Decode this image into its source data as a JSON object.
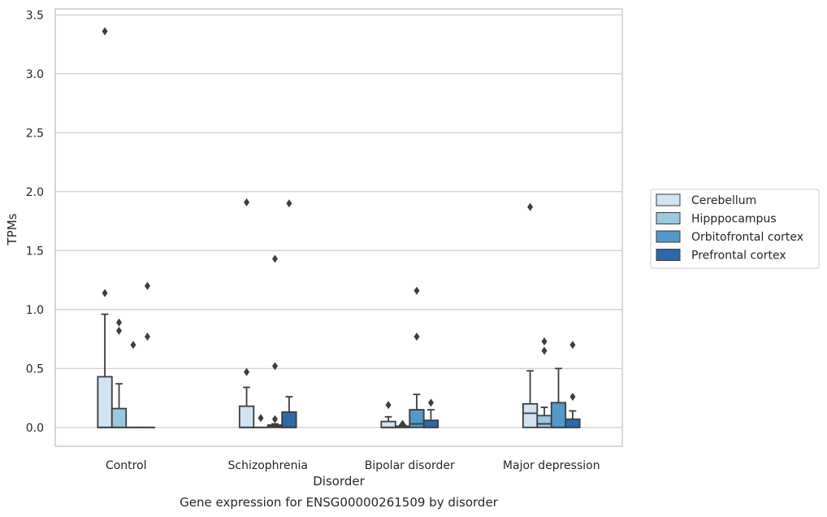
{
  "chart_data": {
    "type": "box",
    "title": "Gene expression for ENSG00000261509 by disorder",
    "xlabel": "Disorder",
    "ylabel": "TPMs",
    "categories": [
      "Control",
      "Schizophrenia",
      "Bipolar disorder",
      "Major depression"
    ],
    "ylim": [
      -0.16,
      3.55
    ],
    "yticks": [
      0.0,
      0.5,
      1.0,
      1.5,
      2.0,
      2.5,
      3.0,
      3.5
    ],
    "ytick_labels": [
      "0.0",
      "0.5",
      "1.0",
      "1.5",
      "2.0",
      "2.5",
      "3.0",
      "3.5"
    ],
    "grid": "horizontal",
    "legend_position": "right",
    "series": [
      {
        "name": "Cerebellum",
        "color": "#d2e3f3",
        "boxes": [
          {
            "q1": 0.0,
            "median": 0.0,
            "q3": 0.43,
            "whisker_low": 0.0,
            "whisker_high": 0.96,
            "outliers": [
              1.14,
              3.36
            ]
          },
          {
            "q1": 0.0,
            "median": 0.0,
            "q3": 0.18,
            "whisker_low": 0.0,
            "whisker_high": 0.34,
            "outliers": [
              0.47,
              1.91
            ]
          },
          {
            "q1": 0.0,
            "median": 0.0,
            "q3": 0.05,
            "whisker_low": 0.0,
            "whisker_high": 0.09,
            "outliers": [
              0.19
            ]
          },
          {
            "q1": 0.0,
            "median": 0.12,
            "q3": 0.2,
            "whisker_low": 0.0,
            "whisker_high": 0.48,
            "outliers": [
              1.87
            ]
          }
        ]
      },
      {
        "name": "Hipppocampus",
        "color": "#9ac8e0",
        "boxes": [
          {
            "q1": 0.0,
            "median": 0.0,
            "q3": 0.16,
            "whisker_low": 0.0,
            "whisker_high": 0.37,
            "outliers": [
              0.82,
              0.89
            ]
          },
          {
            "q1": 0.0,
            "median": 0.0,
            "q3": 0.0,
            "whisker_low": 0.0,
            "whisker_high": 0.0,
            "outliers": [
              0.08
            ]
          },
          {
            "q1": 0.0,
            "median": 0.0,
            "q3": 0.01,
            "whisker_low": 0.0,
            "whisker_high": 0.02,
            "outliers": [
              0.03
            ]
          },
          {
            "q1": 0.0,
            "median": 0.03,
            "q3": 0.1,
            "whisker_low": 0.0,
            "whisker_high": 0.17,
            "outliers": [
              0.65,
              0.73
            ]
          }
        ]
      },
      {
        "name": "Orbitofrontal cortex",
        "color": "#5299c8",
        "boxes": [
          {
            "q1": 0.0,
            "median": 0.0,
            "q3": 0.0,
            "whisker_low": 0.0,
            "whisker_high": 0.0,
            "outliers": [
              0.7
            ]
          },
          {
            "q1": 0.0,
            "median": 0.01,
            "q3": 0.02,
            "whisker_low": 0.0,
            "whisker_high": 0.03,
            "outliers": [
              0.07,
              0.52,
              1.43
            ]
          },
          {
            "q1": 0.0,
            "median": 0.03,
            "q3": 0.15,
            "whisker_low": 0.0,
            "whisker_high": 0.28,
            "outliers": [
              0.77,
              1.16
            ]
          },
          {
            "q1": 0.0,
            "median": 0.0,
            "q3": 0.21,
            "whisker_low": 0.0,
            "whisker_high": 0.5,
            "outliers": []
          }
        ]
      },
      {
        "name": "Prefrontal cortex",
        "color": "#2a6aad",
        "boxes": [
          {
            "q1": 0.0,
            "median": 0.0,
            "q3": 0.0,
            "whisker_low": 0.0,
            "whisker_high": 0.0,
            "outliers": [
              0.77,
              1.2
            ]
          },
          {
            "q1": 0.0,
            "median": 0.0,
            "q3": 0.13,
            "whisker_low": 0.0,
            "whisker_high": 0.26,
            "outliers": [
              1.9
            ]
          },
          {
            "q1": 0.0,
            "median": 0.0,
            "q3": 0.06,
            "whisker_low": 0.0,
            "whisker_high": 0.15,
            "outliers": [
              0.21
            ]
          },
          {
            "q1": 0.0,
            "median": 0.0,
            "q3": 0.07,
            "whisker_low": 0.0,
            "whisker_high": 0.14,
            "outliers": [
              0.26,
              0.7
            ]
          }
        ]
      }
    ]
  }
}
